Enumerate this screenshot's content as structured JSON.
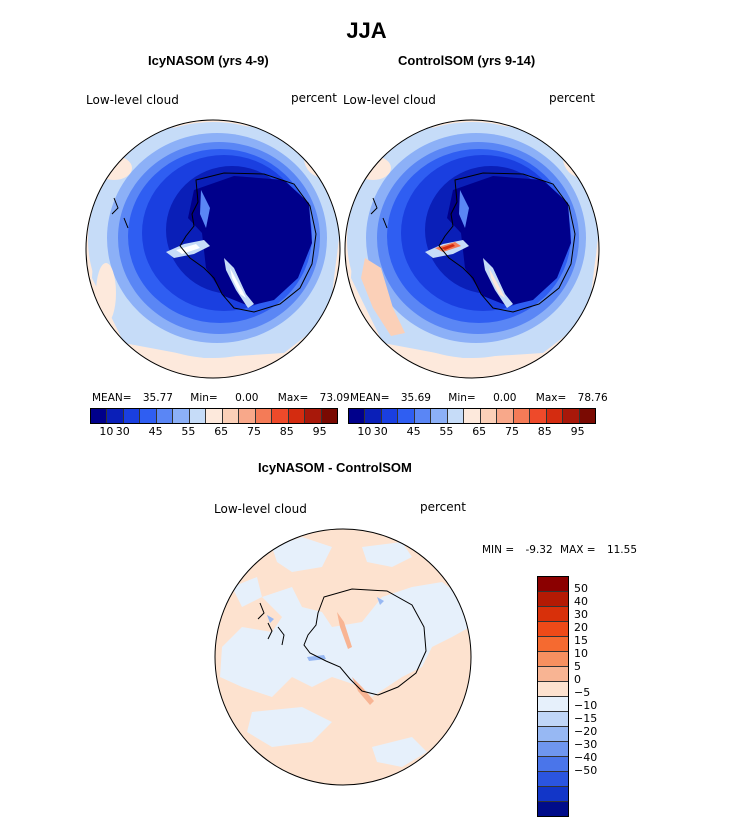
{
  "title": "JJA",
  "panel_left": {
    "subtitle": "IcyNASOM (yrs 4-9)",
    "variable": "Low-level cloud",
    "units": "percent",
    "mean_label": "MEAN=",
    "mean": "35.77",
    "min_label": "Min=",
    "min": "0.00",
    "max_label": "Max=",
    "max": "73.09"
  },
  "panel_right": {
    "subtitle": "ControlSOM (yrs 9-14)",
    "variable": "Low-level cloud",
    "units": "percent",
    "mean_label": "MEAN=",
    "mean": "35.69",
    "min_label": "Min=",
    "min": "0.00",
    "max_label": "Max=",
    "max": "78.76"
  },
  "colorbar_top": {
    "colors": [
      "#00008b",
      "#0a1fb8",
      "#1a3fe0",
      "#2f5ef2",
      "#5a86f5",
      "#8cb0f7",
      "#c6dcf8",
      "#fde9dc",
      "#fbd0b8",
      "#f8a88a",
      "#f47b57",
      "#ee4a2a",
      "#d42c10",
      "#a8180a",
      "#7a0a02"
    ],
    "ticks": [
      "10",
      "30",
      "45",
      "55",
      "65",
      "75",
      "85",
      "95"
    ]
  },
  "panel_diff": {
    "subtitle": "IcyNASOM - ControlSOM",
    "variable": "Low-level cloud",
    "units": "percent",
    "min_label": "MIN =",
    "min": "-9.32",
    "max_label": "MAX =",
    "max": "11.55"
  },
  "colorbar_diff": {
    "colors": [
      "#8b0000",
      "#b41a04",
      "#d8300a",
      "#ee4a18",
      "#f56a30",
      "#f79060",
      "#f8b493",
      "#fde2cf",
      "#e6f0fb",
      "#c0d6f7",
      "#97b8f3",
      "#6f96ef",
      "#4a75ea",
      "#2b55e0",
      "#1236c8",
      "#000c8a"
    ],
    "labels": [
      "50",
      "40",
      "30",
      "20",
      "15",
      "10",
      "5",
      "0",
      "−5",
      "−10",
      "−15",
      "−20",
      "−30",
      "−40",
      "−50"
    ]
  }
}
